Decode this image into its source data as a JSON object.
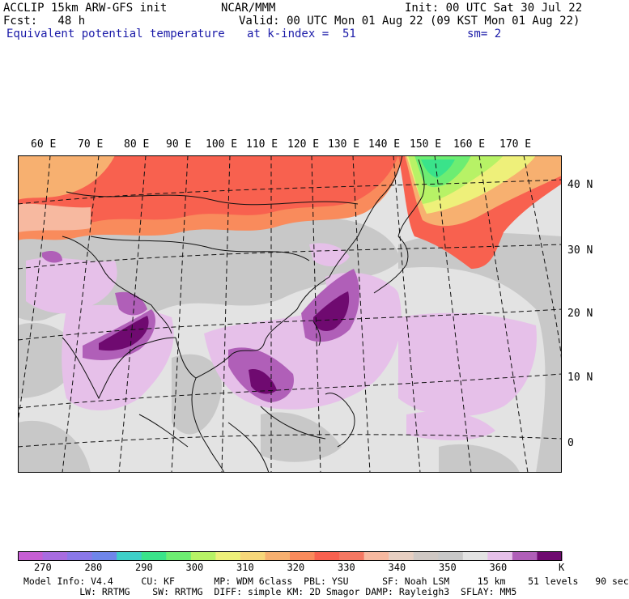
{
  "header": {
    "model": "ACCLIP 15km ARW-GFS init",
    "fcst": "Fcst:   48 h",
    "center": "NCAR/MMM",
    "init": "Init: 00 UTC Sat 30 Jul 22",
    "valid": "Valid: 00 UTC Mon 01 Aug 22 (09 KST Mon 01 Aug 22)",
    "field": "Equivalent potential temperature",
    "level": "at k-index =  51",
    "smooth": "sm= 2"
  },
  "map": {
    "lon_labels": [
      "60 E",
      "70 E",
      "80 E",
      "90 E",
      "100 E",
      "110 E",
      "120 E",
      "130 E",
      "140 E",
      "150 E",
      "160 E",
      "170 E"
    ],
    "lat_labels": [
      "40 N",
      "30 N",
      "20 N",
      "10 N",
      "0"
    ]
  },
  "colorbar": {
    "colors": [
      "#c65ed3",
      "#a86ce0",
      "#8a78e8",
      "#6f86ea",
      "#3ecfc8",
      "#3ae38a",
      "#6ded72",
      "#b7f266",
      "#eef07a",
      "#f7d77a",
      "#f7b070",
      "#f98b5c",
      "#f8614f",
      "#f57862",
      "#f7b9a0",
      "#e7cfc2",
      "#cfc8c4",
      "#c8c8c8",
      "#e3e3e3",
      "#e6c0e9",
      "#b05fb8",
      "#6f0a70"
    ],
    "labels": [
      "270",
      "280",
      "290",
      "300",
      "310",
      "320",
      "330",
      "340",
      "350",
      "360"
    ],
    "unit": "K"
  },
  "footer": {
    "line1": "Model Info: V4.4     CU: KF       MP: WDM 6class  PBL: YSU      SF: Noah LSM     15 km    51 levels   90 sec",
    "line2": "          LW: RRTMG    SW: RRTMG  DIFF: simple KM: 2D Smagor DAMP: Rayleigh3  SFLAY: MM5"
  }
}
